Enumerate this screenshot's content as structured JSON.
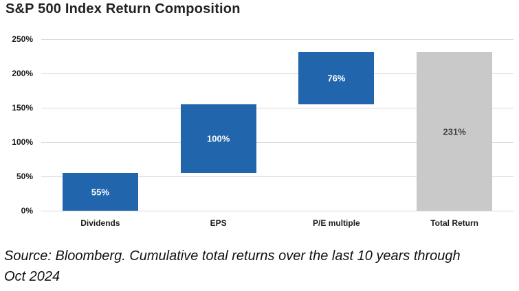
{
  "title": "S&P 500 Index Return Composition",
  "source_note": {
    "line1": "Source: Bloomberg. Cumulative total returns over the last 10 years through",
    "line2": "Oct 2024"
  },
  "colors": {
    "bar_blue": "#2166ad",
    "bar_gray": "#c9c9c9",
    "gridline": "#d9d9d9",
    "label_on_blue": "#ffffff",
    "label_on_gray": "#404040"
  },
  "chart_data": {
    "type": "bar",
    "subtype": "waterfall",
    "title": "S&P 500 Index Return Composition",
    "xlabel": "",
    "ylabel": "",
    "categories": [
      "Dividends",
      "EPS",
      "P/E multiple",
      "Total Return"
    ],
    "bars": [
      {
        "category": "Dividends",
        "start": 0,
        "end": 55,
        "value": 55,
        "label": "55%",
        "color": "#2166ad",
        "label_color": "#ffffff"
      },
      {
        "category": "EPS",
        "start": 55,
        "end": 155,
        "value": 100,
        "label": "100%",
        "color": "#2166ad",
        "label_color": "#ffffff"
      },
      {
        "category": "P/E multiple",
        "start": 155,
        "end": 231,
        "value": 76,
        "label": "76%",
        "color": "#2166ad",
        "label_color": "#ffffff"
      },
      {
        "category": "Total Return",
        "start": 0,
        "end": 231,
        "value": 231,
        "label": "231%",
        "color": "#c9c9c9",
        "label_color": "#404040"
      }
    ],
    "y_axis": {
      "min": 0,
      "max": 250,
      "step": 50,
      "ticks": [
        {
          "value": 0,
          "label": "0%"
        },
        {
          "value": 50,
          "label": "50%"
        },
        {
          "value": 100,
          "label": "100%"
        },
        {
          "value": 150,
          "label": "150%"
        },
        {
          "value": 200,
          "label": "200%"
        },
        {
          "value": 250,
          "label": "250%"
        }
      ]
    },
    "grid": true,
    "legend": "none"
  }
}
